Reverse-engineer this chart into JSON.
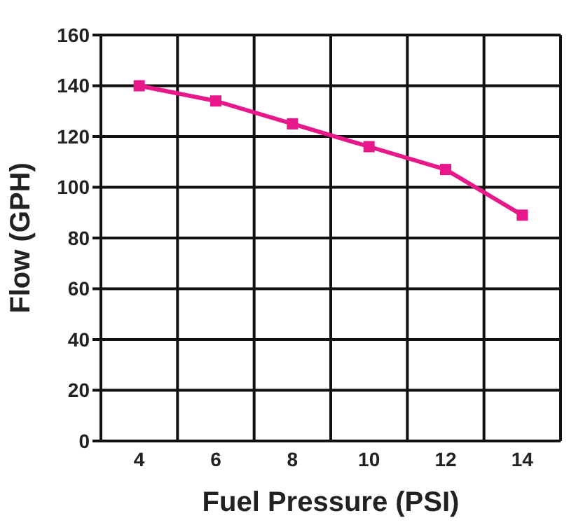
{
  "chart_data": {
    "type": "line",
    "xlabel": "Fuel Pressure (PSI)",
    "ylabel": "Flow (GPH)",
    "categories": [
      "4",
      "6",
      "8",
      "10",
      "12",
      "14"
    ],
    "series": [
      {
        "color": "#e8178a",
        "values": [
          140,
          134,
          125,
          116,
          107,
          89
        ]
      }
    ],
    "ylim": [
      0,
      160
    ],
    "yticks": [
      0,
      20,
      40,
      60,
      80,
      100,
      120,
      140,
      160
    ],
    "grid": true,
    "marker": "square",
    "line_style": "solid",
    "legend": false
  }
}
